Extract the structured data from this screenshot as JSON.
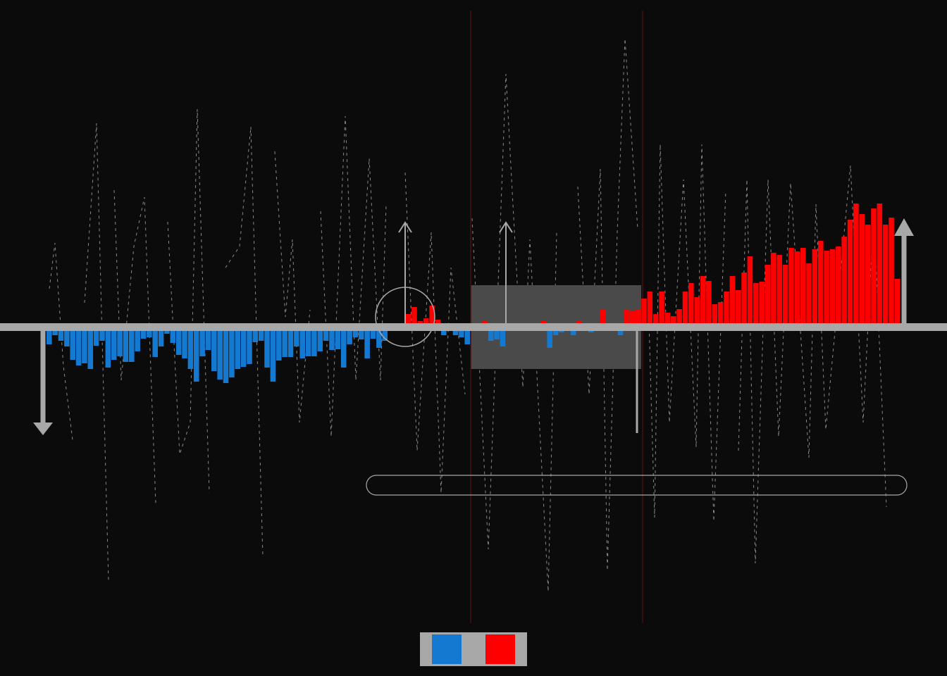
{
  "chart_data": {
    "type": "bar",
    "values": [
      -0.25,
      -0.12,
      -0.2,
      -0.28,
      -0.47,
      -0.55,
      -0.52,
      -0.6,
      -0.27,
      -0.2,
      -0.58,
      -0.47,
      -0.42,
      -0.5,
      -0.5,
      -0.35,
      -0.17,
      -0.15,
      -0.43,
      -0.28,
      -0.1,
      -0.23,
      -0.4,
      -0.45,
      -0.6,
      -0.78,
      -0.42,
      -0.33,
      -0.63,
      -0.75,
      -0.8,
      -0.72,
      -0.6,
      -0.57,
      -0.53,
      -0.22,
      -0.2,
      -0.58,
      -0.78,
      -0.48,
      -0.43,
      -0.43,
      -0.28,
      -0.45,
      -0.42,
      -0.42,
      -0.35,
      -0.2,
      -0.33,
      -0.32,
      -0.58,
      -0.25,
      -0.15,
      -0.18,
      -0.45,
      -0.17,
      -0.3,
      -0.2,
      -0.05,
      0.03,
      0.05,
      0.18,
      0.28,
      0.08,
      0.12,
      0.3,
      0.1,
      -0.12,
      -0.05,
      -0.12,
      -0.15,
      -0.25,
      -0.05,
      0.02,
      0.08,
      -0.2,
      -0.18,
      -0.28,
      0.03,
      0.05,
      0.04,
      -0.05,
      0.05,
      0.02,
      0.08,
      -0.3,
      -0.12,
      -0.08,
      -0.05,
      -0.12,
      0.08,
      0.05,
      -0.08,
      0.05,
      0.25,
      0.03,
      -0.05,
      -0.12,
      0.25,
      0.22,
      0.25,
      0.4,
      0.5,
      0.18,
      0.5,
      0.2,
      0.15,
      0.25,
      0.5,
      0.62,
      0.42,
      0.72,
      0.65,
      0.32,
      0.35,
      0.5,
      0.72,
      0.52,
      0.77,
      1.0,
      0.62,
      0.64,
      0.88,
      1.05,
      1.02,
      0.88,
      1.12,
      1.07,
      1.12,
      0.9,
      1.1,
      1.22,
      1.08,
      1.1,
      1.14,
      1.28,
      1.52,
      1.75,
      1.6,
      1.45,
      1.68,
      1.75,
      1.45,
      1.55,
      0.68
    ],
    "colors": {
      "negative": "#1479d0",
      "positive": "#ff0000"
    },
    "ylim": [
      -2,
      2
    ]
  }
}
